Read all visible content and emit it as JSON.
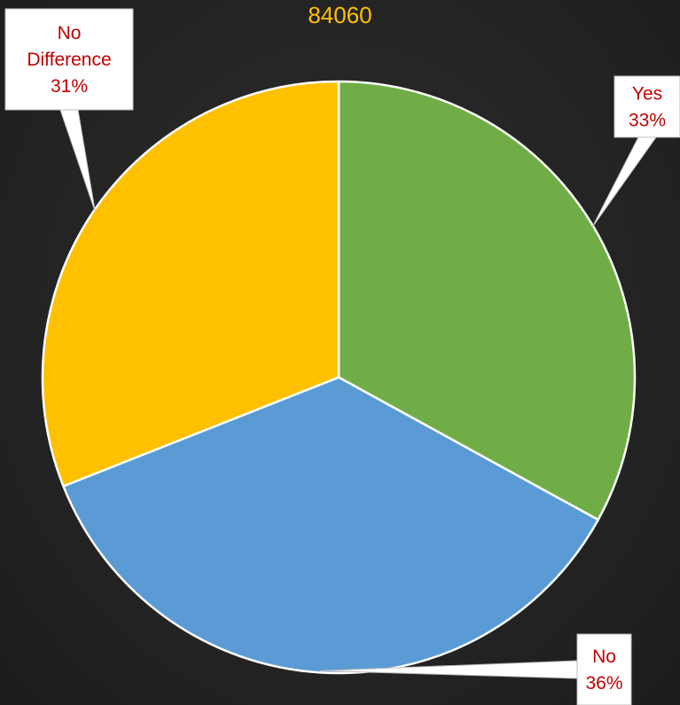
{
  "chart_data": {
    "type": "pie",
    "title": "84060",
    "slices": [
      {
        "label": "Yes",
        "percent_label": "33%",
        "value": 33,
        "color": "#70ad47"
      },
      {
        "label": "No",
        "percent_label": "36%",
        "value": 36,
        "color": "#5b9bd5"
      },
      {
        "label": "No Difference",
        "percent_label": "31%",
        "value": 31,
        "color": "#ffc000"
      }
    ],
    "slice_border_color": "#ffffff",
    "title_color": "#ffc000",
    "label_color": "#c00000"
  }
}
